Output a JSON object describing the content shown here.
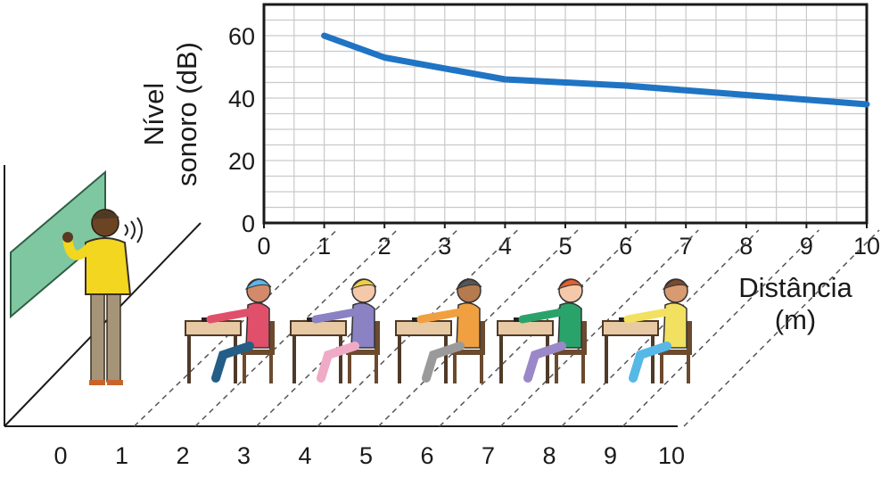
{
  "chart_data": {
    "type": "line",
    "xlabel": "Distância (m)",
    "xlabel_lines": [
      "Distância",
      "(m)"
    ],
    "ylabel": "Nível sonoro (dB)",
    "ylabel_lines": [
      "Nível",
      "sonoro (dB)"
    ],
    "x_ticks": [
      "0",
      "1",
      "2",
      "3",
      "4",
      "5",
      "6",
      "7",
      "8",
      "9",
      "10"
    ],
    "y_ticks": [
      "0",
      "20",
      "40",
      "60"
    ],
    "xlim": [
      0,
      10
    ],
    "ylim": [
      0,
      70
    ],
    "grid": true,
    "line_color": "#1f74c4",
    "series": [
      {
        "x": [
          1,
          2,
          3,
          4,
          5,
          6,
          7,
          8,
          9,
          10
        ],
        "y": [
          60,
          53,
          49.5,
          46,
          45,
          44,
          42.5,
          41,
          39.5,
          38
        ]
      }
    ]
  },
  "floor_ticks": [
    "0",
    "1",
    "2",
    "3",
    "4",
    "5",
    "6",
    "7",
    "8",
    "9",
    "10"
  ],
  "colors": {
    "board": "#7fc7a0",
    "teacher_shirt": "#f2d61f",
    "teacher_pants": "#a59478",
    "desk": "#e7c9a4",
    "desk_legs": "#4f3a28",
    "chair": "#6b4a2e"
  }
}
